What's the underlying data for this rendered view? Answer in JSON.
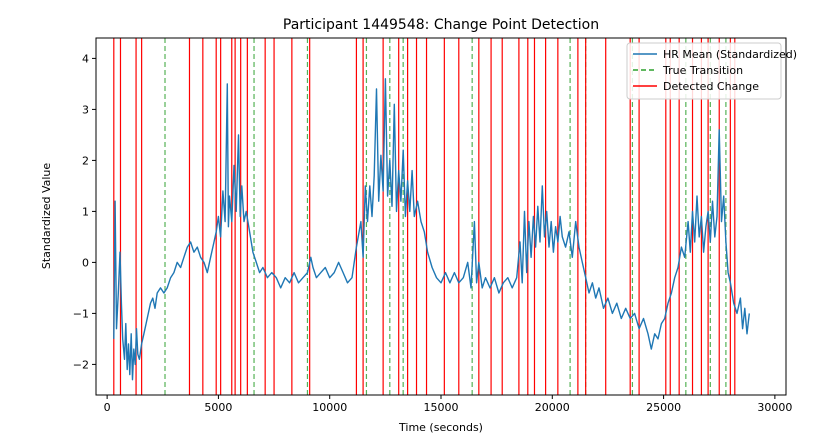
{
  "chart_data": {
    "type": "line",
    "title": "Participant 1449548: Change Point Detection",
    "xlabel": "Time (seconds)",
    "ylabel": "Standardized Value",
    "xlim": [
      -500,
      30500
    ],
    "ylim": [
      -2.6,
      4.4
    ],
    "xticks": [
      0,
      5000,
      10000,
      15000,
      20000,
      25000,
      30000
    ],
    "xtick_labels": [
      "0",
      "5000",
      "10000",
      "15000",
      "20000",
      "25000",
      "30000"
    ],
    "yticks": [
      -2,
      -1,
      0,
      1,
      2,
      3,
      4
    ],
    "ytick_labels": [
      "−2",
      "−1",
      "0",
      "1",
      "2",
      "3",
      "4"
    ],
    "grid": false,
    "legend_position": "top-right",
    "legend": [
      {
        "label": "HR Mean (Standardized)",
        "color": "#1f77b4",
        "style": "solid"
      },
      {
        "label": "True Transition",
        "color": "#2ca02c",
        "style": "dashed"
      },
      {
        "label": "Detected Change",
        "color": "#ff0000",
        "style": "solid"
      }
    ],
    "series": [
      {
        "name": "HR Mean (Standardized)",
        "color": "#1f77b4",
        "points": [
          [
            300,
            -1.5
          ],
          [
            360,
            1.2
          ],
          [
            420,
            -1.3
          ],
          [
            500,
            -0.6
          ],
          [
            580,
            0.2
          ],
          [
            640,
            -0.8
          ],
          [
            700,
            -1.5
          ],
          [
            780,
            -1.9
          ],
          [
            840,
            -1.2
          ],
          [
            900,
            -2.1
          ],
          [
            960,
            -1.6
          ],
          [
            1020,
            -2.2
          ],
          [
            1080,
            -1.4
          ],
          [
            1140,
            -2.3
          ],
          [
            1200,
            -1.7
          ],
          [
            1260,
            -2.0
          ],
          [
            1320,
            -1.3
          ],
          [
            1380,
            -1.8
          ],
          [
            1450,
            -1.9
          ],
          [
            1550,
            -1.6
          ],
          [
            1650,
            -1.4
          ],
          [
            1750,
            -1.2
          ],
          [
            1850,
            -1.0
          ],
          [
            1950,
            -0.8
          ],
          [
            2050,
            -0.7
          ],
          [
            2150,
            -0.9
          ],
          [
            2250,
            -0.6
          ],
          [
            2400,
            -0.5
          ],
          [
            2550,
            -0.6
          ],
          [
            2700,
            -0.5
          ],
          [
            2850,
            -0.3
          ],
          [
            3000,
            -0.2
          ],
          [
            3150,
            0.0
          ],
          [
            3300,
            -0.1
          ],
          [
            3450,
            0.1
          ],
          [
            3600,
            0.3
          ],
          [
            3750,
            0.4
          ],
          [
            3900,
            0.2
          ],
          [
            4050,
            0.3
          ],
          [
            4200,
            0.1
          ],
          [
            4350,
            0.0
          ],
          [
            4500,
            -0.2
          ],
          [
            4650,
            0.1
          ],
          [
            4800,
            0.4
          ],
          [
            4900,
            0.6
          ],
          [
            5000,
            0.9
          ],
          [
            5100,
            0.5
          ],
          [
            5200,
            1.4
          ],
          [
            5300,
            0.8
          ],
          [
            5400,
            3.5
          ],
          [
            5450,
            0.7
          ],
          [
            5500,
            1.3
          ],
          [
            5600,
            0.8
          ],
          [
            5700,
            1.9
          ],
          [
            5800,
            1.0
          ],
          [
            5900,
            2.5
          ],
          [
            5980,
            0.9
          ],
          [
            6050,
            1.5
          ],
          [
            6150,
            0.8
          ],
          [
            6250,
            1.0
          ],
          [
            6400,
            0.6
          ],
          [
            6550,
            0.2
          ],
          [
            6700,
            0.0
          ],
          [
            6850,
            -0.2
          ],
          [
            7000,
            -0.1
          ],
          [
            7200,
            -0.3
          ],
          [
            7400,
            -0.2
          ],
          [
            7600,
            -0.3
          ],
          [
            7800,
            -0.5
          ],
          [
            8000,
            -0.3
          ],
          [
            8200,
            -0.4
          ],
          [
            8400,
            -0.2
          ],
          [
            8600,
            -0.4
          ],
          [
            8800,
            -0.3
          ],
          [
            9000,
            -0.2
          ],
          [
            9150,
            0.1
          ],
          [
            9250,
            -0.1
          ],
          [
            9400,
            -0.3
          ],
          [
            9600,
            -0.2
          ],
          [
            9800,
            -0.1
          ],
          [
            10000,
            -0.3
          ],
          [
            10200,
            -0.2
          ],
          [
            10400,
            0.0
          ],
          [
            10600,
            -0.2
          ],
          [
            10800,
            -0.4
          ],
          [
            11000,
            -0.3
          ],
          [
            11200,
            0.3
          ],
          [
            11400,
            0.8
          ],
          [
            11500,
            0.1
          ],
          [
            11600,
            1.5
          ],
          [
            11700,
            0.8
          ],
          [
            11800,
            1.5
          ],
          [
            11900,
            0.9
          ],
          [
            12000,
            1.7
          ],
          [
            12100,
            3.4
          ],
          [
            12200,
            1.2
          ],
          [
            12300,
            2.1
          ],
          [
            12400,
            1.4
          ],
          [
            12500,
            3.6
          ],
          [
            12600,
            1.3
          ],
          [
            12700,
            2.0
          ],
          [
            12800,
            1.1
          ],
          [
            12900,
            3.1
          ],
          [
            13000,
            1.0
          ],
          [
            13100,
            1.8
          ],
          [
            13200,
            1.2
          ],
          [
            13300,
            2.2
          ],
          [
            13400,
            0.9
          ],
          [
            13500,
            1.6
          ],
          [
            13600,
            1.0
          ],
          [
            13700,
            1.8
          ],
          [
            13800,
            0.9
          ],
          [
            13950,
            1.2
          ],
          [
            14100,
            0.8
          ],
          [
            14250,
            0.6
          ],
          [
            14400,
            0.2
          ],
          [
            14600,
            -0.1
          ],
          [
            14800,
            -0.3
          ],
          [
            15000,
            -0.4
          ],
          [
            15200,
            -0.2
          ],
          [
            15400,
            -0.4
          ],
          [
            15600,
            -0.2
          ],
          [
            15800,
            -0.4
          ],
          [
            16000,
            -0.3
          ],
          [
            16200,
            0.0
          ],
          [
            16350,
            -0.5
          ],
          [
            16500,
            0.8
          ],
          [
            16600,
            -0.4
          ],
          [
            16700,
            0.0
          ],
          [
            16850,
            -0.5
          ],
          [
            17000,
            -0.3
          ],
          [
            17200,
            -0.5
          ],
          [
            17400,
            -0.3
          ],
          [
            17600,
            -0.6
          ],
          [
            17800,
            -0.4
          ],
          [
            18000,
            -0.3
          ],
          [
            18200,
            -0.5
          ],
          [
            18400,
            -0.3
          ],
          [
            18550,
            0.4
          ],
          [
            18650,
            -0.4
          ],
          [
            18750,
            1.0
          ],
          [
            18850,
            -0.2
          ],
          [
            18950,
            0.8
          ],
          [
            19050,
            0.1
          ],
          [
            19150,
            0.9
          ],
          [
            19250,
            0.3
          ],
          [
            19350,
            1.1
          ],
          [
            19450,
            0.4
          ],
          [
            19550,
            1.5
          ],
          [
            19650,
            0.5
          ],
          [
            19750,
            1.0
          ],
          [
            19850,
            0.3
          ],
          [
            19950,
            0.8
          ],
          [
            20050,
            0.2
          ],
          [
            20150,
            0.7
          ],
          [
            20250,
            0.4
          ],
          [
            20350,
            0.9
          ],
          [
            20450,
            0.5
          ],
          [
            20600,
            0.3
          ],
          [
            20750,
            0.6
          ],
          [
            20900,
            0.1
          ],
          [
            21050,
            0.8
          ],
          [
            21200,
            0.3
          ],
          [
            21350,
            0.0
          ],
          [
            21500,
            -0.3
          ],
          [
            21650,
            -0.6
          ],
          [
            21800,
            -0.4
          ],
          [
            21950,
            -0.7
          ],
          [
            22100,
            -0.5
          ],
          [
            22300,
            -0.9
          ],
          [
            22500,
            -0.7
          ],
          [
            22700,
            -1.0
          ],
          [
            22900,
            -0.8
          ],
          [
            23100,
            -1.1
          ],
          [
            23300,
            -0.9
          ],
          [
            23500,
            -1.1
          ],
          [
            23700,
            -1.0
          ],
          [
            23900,
            -1.3
          ],
          [
            24100,
            -1.1
          ],
          [
            24300,
            -1.4
          ],
          [
            24450,
            -1.7
          ],
          [
            24600,
            -1.4
          ],
          [
            24750,
            -1.5
          ],
          [
            24900,
            -1.2
          ],
          [
            25050,
            -1.1
          ],
          [
            25200,
            -0.8
          ],
          [
            25350,
            -0.6
          ],
          [
            25500,
            -0.3
          ],
          [
            25650,
            -0.1
          ],
          [
            25800,
            0.3
          ],
          [
            25950,
            0.1
          ],
          [
            26100,
            0.8
          ],
          [
            26200,
            0.2
          ],
          [
            26300,
            1.0
          ],
          [
            26400,
            0.4
          ],
          [
            26500,
            1.3
          ],
          [
            26600,
            0.5
          ],
          [
            26700,
            0.9
          ],
          [
            26800,
            0.2
          ],
          [
            26900,
            0.7
          ],
          [
            27000,
            1.0
          ],
          [
            27100,
            0.4
          ],
          [
            27200,
            1.2
          ],
          [
            27300,
            0.5
          ],
          [
            27400,
            0.9
          ],
          [
            27500,
            2.6
          ],
          [
            27600,
            0.8
          ],
          [
            27700,
            1.3
          ],
          [
            27800,
            0.4
          ],
          [
            27900,
            -0.2
          ],
          [
            28000,
            -0.4
          ],
          [
            28150,
            -0.8
          ],
          [
            28300,
            -1.0
          ],
          [
            28450,
            -0.7
          ],
          [
            28550,
            -1.3
          ],
          [
            28650,
            -0.9
          ],
          [
            28750,
            -1.4
          ],
          [
            28850,
            -1.0
          ]
        ]
      }
    ],
    "true_transitions": [
      2600,
      6600,
      9000,
      11650,
      12700,
      13300,
      16400,
      20800,
      21500,
      23600,
      26000,
      27100,
      27800
    ],
    "detected_changes": [
      300,
      600,
      1300,
      1550,
      3700,
      4300,
      4900,
      5100,
      5600,
      5750,
      6000,
      6300,
      7100,
      7500,
      8300,
      9100,
      11200,
      11500,
      12400,
      13100,
      13500,
      13900,
      14350,
      15150,
      15800,
      16700,
      17250,
      17750,
      18500,
      18900,
      19200,
      19700,
      20250,
      21150,
      21500,
      22400,
      23500,
      23900,
      25100,
      25300,
      25700,
      26300,
      26700,
      27000,
      27500,
      28000,
      28200
    ]
  }
}
